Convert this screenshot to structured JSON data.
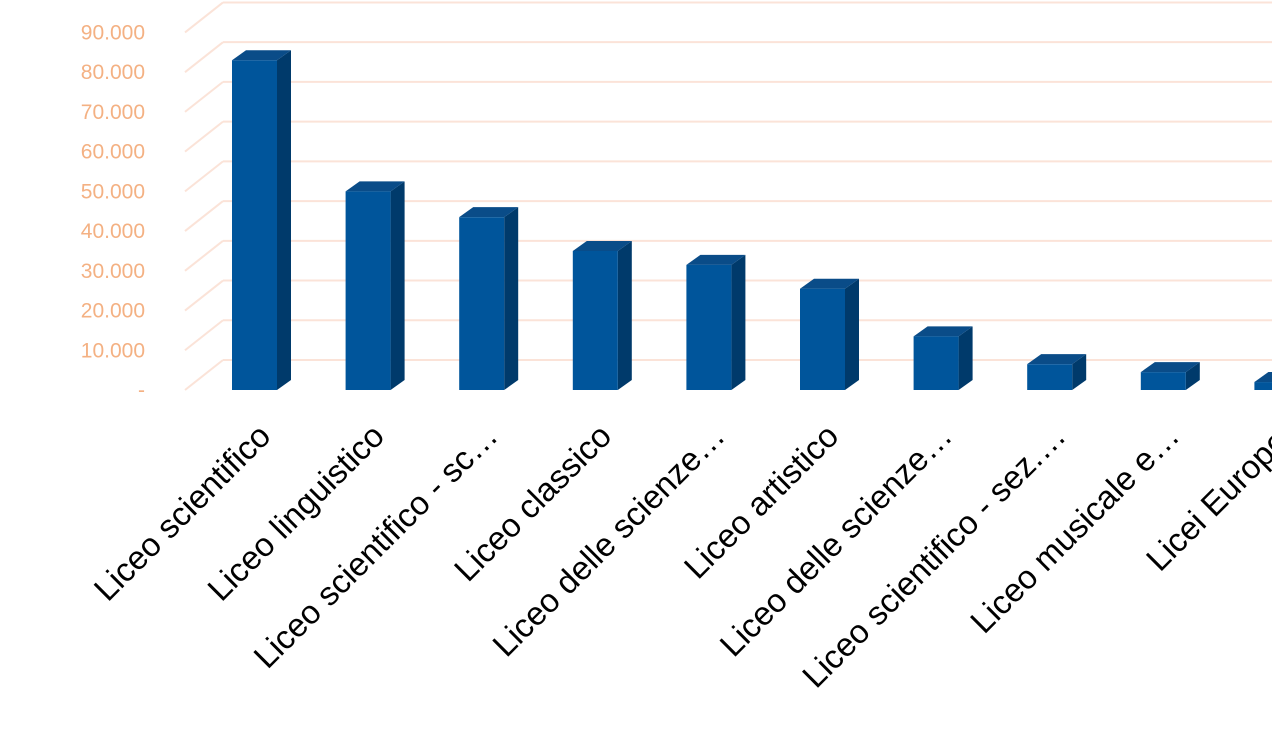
{
  "chart_data": {
    "type": "bar",
    "style": "3d-column",
    "categories": [
      "Liceo scientifico",
      "Liceo linguistico",
      "Liceo scientifico -  sc…",
      "Liceo classico",
      "Liceo delle scienze…",
      "Liceo artistico",
      "Liceo delle scienze…",
      "Liceo scientifico - sez.…",
      "Liceo musicale e…",
      "Licei Europei"
    ],
    "values": [
      83000,
      50000,
      43500,
      35000,
      31500,
      25500,
      13500,
      6500,
      4500,
      2000
    ],
    "ylim": [
      0,
      95000
    ],
    "yticks": [
      0,
      10000,
      20000,
      30000,
      40000,
      50000,
      60000,
      70000,
      80000,
      90000
    ],
    "ytick_labels": [
      "-",
      "10.000",
      "20.000",
      "30.000",
      "40.000",
      "50.000",
      "60.000",
      "70.000",
      "80.000",
      "90.000"
    ],
    "grid": true,
    "legend": "none",
    "colors": {
      "bar_front": "#00559B",
      "bar_side": "#003A6B",
      "bar_top": "#0A4C88",
      "gridline": "#FBE3D8",
      "ytick_text": "#F4B183",
      "xtick_text": "#000000"
    }
  }
}
